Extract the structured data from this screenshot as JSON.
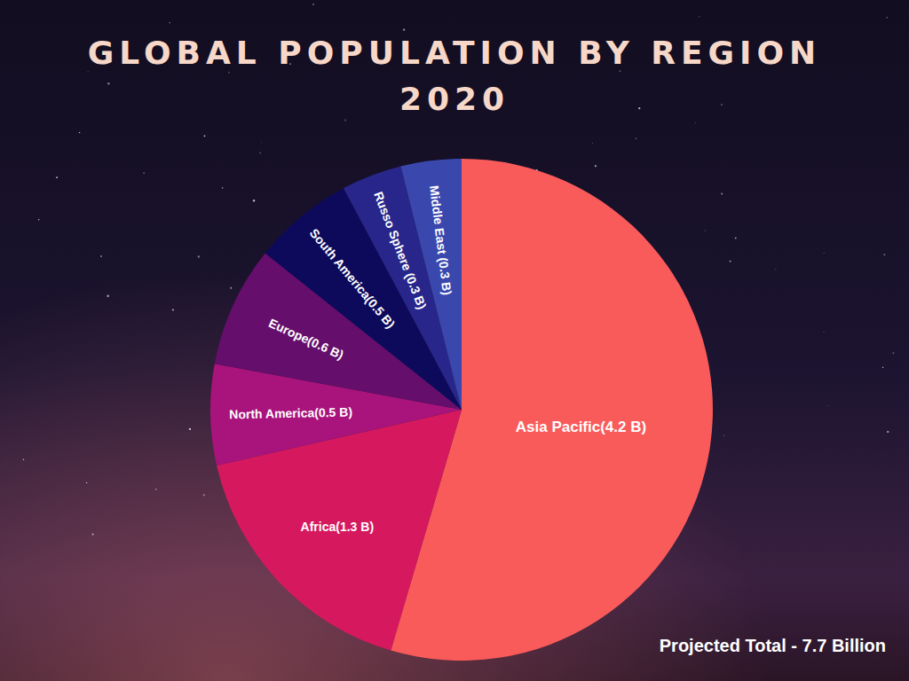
{
  "chart_data": {
    "type": "pie",
    "title": "GLOBAL POPULATION BY REGION 2020",
    "values": [
      4.2,
      1.3,
      0.5,
      0.6,
      0.5,
      0.3,
      0.3
    ],
    "value_labels": [
      "Asia Pacific(4.2 B)",
      "Africa(1.3 B)",
      "North America(0.5 B)",
      "Europe(0.6 B)",
      "South America(0.5 B)",
      "Russo Sphere (0.3 B)",
      "Middle East (0.3 B)"
    ],
    "colors": [
      "#f95a5a",
      "#d6195f",
      "#a9137c",
      "#650e6c",
      "#0d0a5c",
      "#28268a",
      "#3a48ae"
    ],
    "data_labels": true,
    "annotation": "Projected Total - 7.7 Billion"
  }
}
